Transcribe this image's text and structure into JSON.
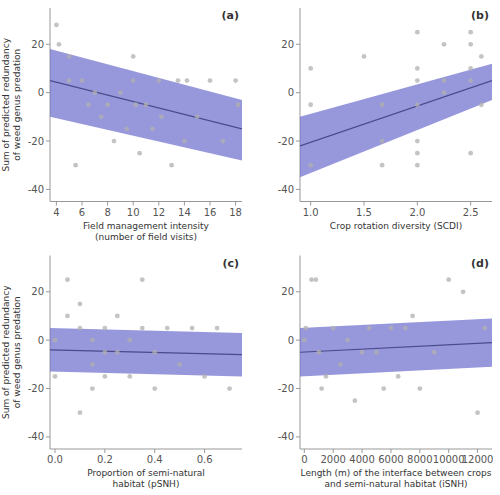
{
  "chart_data": [
    {
      "type": "scatter",
      "title": "(a)",
      "xlabel": "Field management intensity\n(number of field visits)",
      "ylabel": "Sum of predicted redundancy\nof weed genus predation",
      "xlim": [
        3.5,
        18.5
      ],
      "xticks": [
        4,
        6,
        8,
        10,
        12,
        14,
        16,
        18
      ],
      "ylim": [
        -45,
        35
      ],
      "yticks": [
        -40,
        -20,
        0,
        20
      ],
      "series": [
        {
          "type": "area",
          "color": "#6b6bcd",
          "x": [
            3.5,
            18.5
          ],
          "lower": [
            -10.0,
            -28.0
          ],
          "upper": [
            18.0,
            -3.0
          ]
        },
        {
          "type": "line",
          "color": "#4a4a8a",
          "x": [
            3.5,
            18.5
          ],
          "values": [
            5.0,
            -15.0
          ]
        },
        {
          "type": "scatter",
          "color": "#b0b0b0",
          "x": [
            4,
            4.2,
            5,
            5,
            5.5,
            6,
            6.5,
            7,
            7.5,
            8,
            8.5,
            9,
            9.5,
            10,
            10,
            10.2,
            10.5,
            11,
            11.5,
            12,
            12.2,
            13,
            13.5,
            14,
            14.2,
            15,
            16,
            17,
            18,
            18.2
          ],
          "values": [
            28,
            20,
            15,
            5,
            -30,
            5,
            -5,
            0,
            -10,
            -5,
            -20,
            0,
            -15,
            15,
            5,
            -5,
            -25,
            -5,
            -15,
            5,
            -10,
            -30,
            5,
            -20,
            5,
            -10,
            5,
            -20,
            5,
            -5
          ]
        }
      ]
    },
    {
      "type": "scatter",
      "title": "(b)",
      "xlabel": "Crop rotation diversity (SCDI)",
      "xlim": [
        0.9,
        2.7
      ],
      "xticks": [
        {
          "value": 1.0,
          "label": "1.0"
        },
        1.5,
        {
          "value": 2.0,
          "label": "2.0"
        },
        2.5
      ],
      "ylim": [
        -45,
        35
      ],
      "yticks": [
        -40,
        -20,
        0,
        20
      ],
      "series": [
        {
          "type": "area",
          "color": "#6b6bcd",
          "x": [
            0.9,
            2.7
          ],
          "lower": [
            -35.0,
            -3.0
          ],
          "upper": [
            -10.0,
            12.0
          ]
        },
        {
          "type": "line",
          "color": "#4a4a8a",
          "x": [
            0.9,
            2.7
          ],
          "values": [
            -22.0,
            5.0
          ]
        },
        {
          "type": "scatter",
          "color": "#b0b0b0",
          "x": [
            1.0,
            1.0,
            1.0,
            1.5,
            1.67,
            1.67,
            1.67,
            2.0,
            2.0,
            2.0,
            2.0,
            2.0,
            2.0,
            2.0,
            2.25,
            2.25,
            2.25,
            2.5,
            2.5,
            2.5,
            2.5,
            2.5,
            2.6,
            2.6
          ],
          "values": [
            10,
            -5,
            -30,
            15,
            -5,
            -20,
            -30,
            25,
            10,
            5,
            -5,
            -20,
            -25,
            -30,
            20,
            5,
            0,
            25,
            20,
            10,
            5,
            -25,
            15,
            -5
          ]
        }
      ]
    },
    {
      "type": "scatter",
      "title": "(c)",
      "xlabel": "Proportion of semi-natural\nhabitat (pSNH)",
      "ylabel": "Sum of predicted redundancy\nof weed genus predation",
      "xlim": [
        -0.02,
        0.75
      ],
      "xticks": [
        {
          "value": 0.0,
          "label": "0.0"
        },
        0.2,
        0.4,
        0.6
      ],
      "ylim": [
        -45,
        35
      ],
      "yticks": [
        -40,
        -20,
        0,
        20
      ],
      "series": [
        {
          "type": "area",
          "color": "#6b6bcd",
          "x": [
            -0.02,
            0.75
          ],
          "lower": [
            -13.0,
            -15.0
          ],
          "upper": [
            5.0,
            3.0
          ]
        },
        {
          "type": "line",
          "color": "#4a4a8a",
          "x": [
            -0.02,
            0.75
          ],
          "values": [
            -4.0,
            -6.0
          ]
        },
        {
          "type": "scatter",
          "color": "#b0b0b0",
          "x": [
            0.0,
            0.0,
            0.05,
            0.05,
            0.1,
            0.1,
            0.1,
            0.15,
            0.15,
            0.15,
            0.2,
            0.2,
            0.2,
            0.25,
            0.25,
            0.3,
            0.3,
            0.35,
            0.35,
            0.4,
            0.4,
            0.45,
            0.5,
            0.55,
            0.6,
            0.65,
            0.7
          ],
          "values": [
            0,
            -15,
            25,
            10,
            -30,
            5,
            15,
            0,
            -10,
            -20,
            5,
            -5,
            -15,
            10,
            -5,
            0,
            -15,
            25,
            5,
            -5,
            -20,
            5,
            -10,
            5,
            -15,
            5,
            -20
          ]
        }
      ]
    },
    {
      "type": "scatter",
      "title": "(d)",
      "xlabel": "Length (m) of the interface between crops\nand semi-natural habitat (iSNH)",
      "xlim": [
        -300,
        13000
      ],
      "xticks": [
        0,
        2000,
        4000,
        6000,
        8000,
        10000,
        12000
      ],
      "ylim": [
        -45,
        35
      ],
      "yticks": [
        -40,
        -20,
        0,
        20
      ],
      "series": [
        {
          "type": "area",
          "color": "#6b6bcd",
          "x": [
            -300,
            13000
          ],
          "lower": [
            -15.0,
            -11.0
          ],
          "upper": [
            5.0,
            9.0
          ]
        },
        {
          "type": "line",
          "color": "#4a4a8a",
          "x": [
            -300,
            13000
          ],
          "values": [
            -5.0,
            -1.0
          ]
        },
        {
          "type": "scatter",
          "color": "#b0b0b0",
          "x": [
            0,
            100,
            500,
            800,
            1000,
            1200,
            1500,
            2000,
            2500,
            3000,
            3500,
            4000,
            4500,
            5000,
            5500,
            6000,
            6500,
            7000,
            7500,
            8000,
            9000,
            10000,
            11000,
            12000,
            12500
          ],
          "values": [
            0,
            5,
            25,
            25,
            -5,
            -20,
            -15,
            5,
            -10,
            0,
            -25,
            -5,
            5,
            -5,
            -20,
            5,
            -15,
            5,
            10,
            -20,
            -5,
            25,
            20,
            -30,
            5
          ]
        }
      ]
    }
  ]
}
